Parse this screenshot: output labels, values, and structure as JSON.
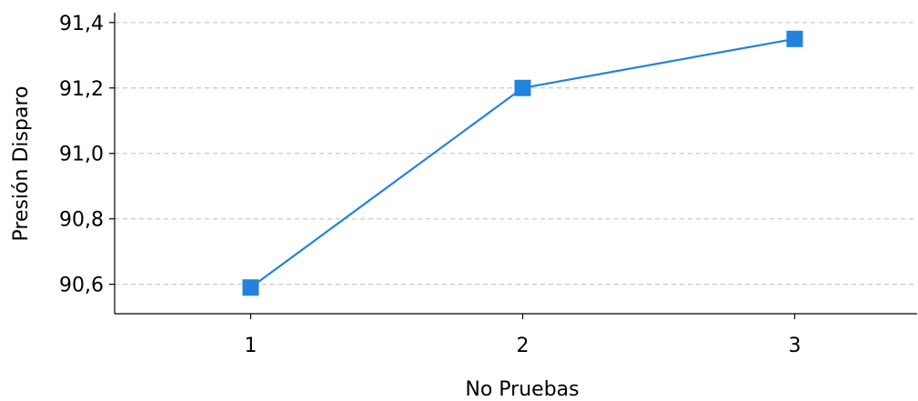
{
  "chart_data": {
    "type": "line",
    "x": [
      1,
      2,
      3
    ],
    "series": [
      {
        "values": [
          90.59,
          91.2,
          91.35
        ],
        "color": "#2282de",
        "marker": "square"
      }
    ],
    "xlabel": "No Pruebas",
    "ylabel": "Presión Disparo",
    "x_ticks": [
      "1",
      "2",
      "3"
    ],
    "y_ticks": [
      "90,6",
      "90,8",
      "91,0",
      "91,2",
      "91,4"
    ],
    "y_tick_values": [
      90.6,
      90.8,
      91.0,
      91.2,
      91.4
    ],
    "xlim": [
      0.5,
      3.45
    ],
    "ylim": [
      90.51,
      91.43
    ],
    "grid": "horizontal-dashed",
    "legend": "none"
  }
}
